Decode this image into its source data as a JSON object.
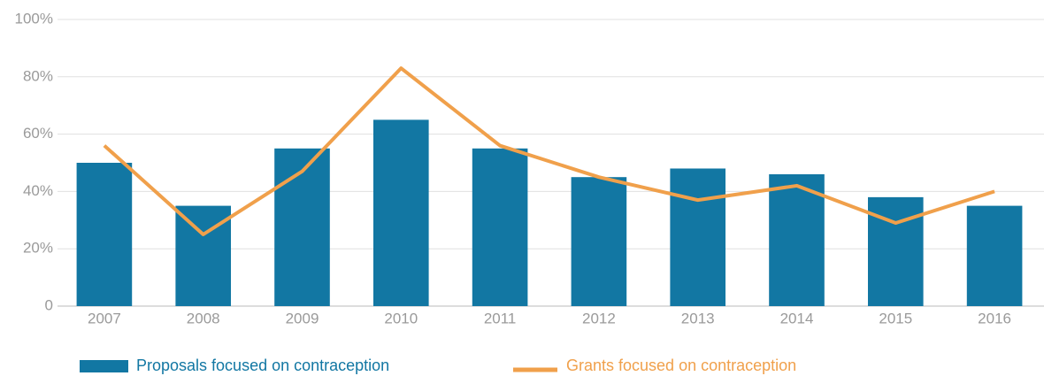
{
  "chart_data": {
    "type": "bar-line",
    "categories": [
      "2007",
      "2008",
      "2009",
      "2010",
      "2011",
      "2012",
      "2013",
      "2014",
      "2015",
      "2016"
    ],
    "series": [
      {
        "name": "Proposals focused on contraception",
        "type": "bar",
        "color": "#1277a3",
        "values": [
          50,
          35,
          55,
          65,
          55,
          45,
          48,
          46,
          38,
          35
        ]
      },
      {
        "name": "Grants focused on contraception",
        "type": "line",
        "color": "#f0a04b",
        "values": [
          56,
          25,
          47,
          83,
          56,
          45,
          37,
          42,
          29,
          40
        ]
      }
    ],
    "ylim": [
      0,
      100
    ],
    "yticks": [
      0,
      {
        "value": 20,
        "label": "20%"
      },
      {
        "value": 40,
        "label": "40%"
      },
      {
        "value": 60,
        "label": "60%"
      },
      {
        "value": 80,
        "label": "80%"
      },
      {
        "value": 100,
        "label": "100%"
      }
    ],
    "grid": true,
    "legend": "bottom"
  }
}
